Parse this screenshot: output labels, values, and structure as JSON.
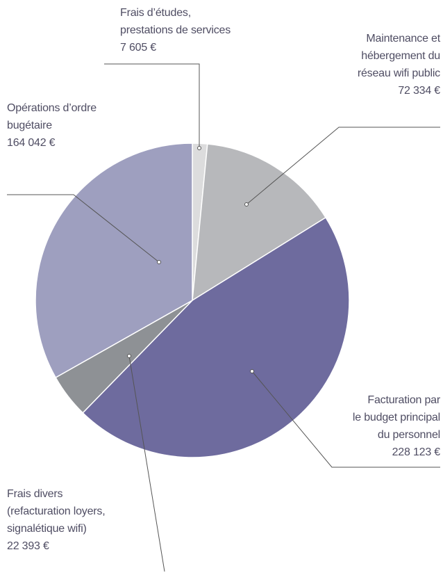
{
  "chart_data": {
    "type": "pie",
    "categories": [
      "Frais d’études,\nprestations de services",
      "Maintenance et\nhébergement du\nréseau wifi public",
      "Facturation par\nle budget principal\ndu personnel",
      "Frais divers\n(refacturation loyers,\nsignalétique wifi)",
      "Opérations d’ordre\nbugétaire"
    ],
    "values": [
      7605,
      72334,
      228123,
      22393,
      164042
    ],
    "value_labels": [
      "7 605 €",
      "72 334 €",
      "228 123 €",
      "22 393 €",
      "164 042 €"
    ],
    "colors": [
      "#dcdcdd",
      "#b7b8bb",
      "#6e6b9e",
      "#8e9195",
      "#9e9fbf"
    ]
  }
}
